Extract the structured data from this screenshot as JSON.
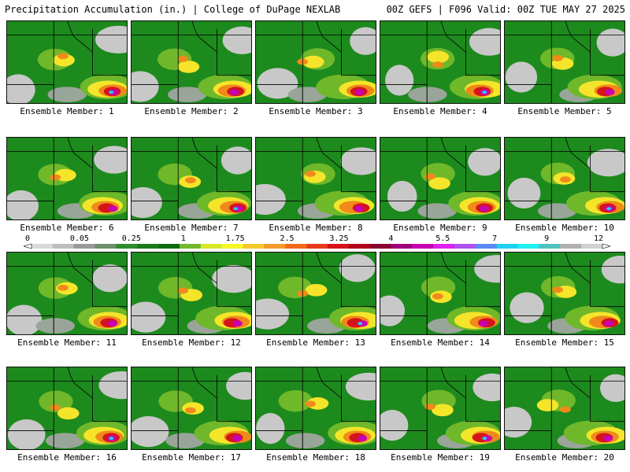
{
  "header": {
    "title_left": "Precipitation Accumulation (in.) | College of DuPage NEXLAB",
    "title_right": "00Z GEFS | F096 Valid: 00Z TUE MAY 27 2025"
  },
  "colorbar": {
    "labels": [
      "0",
      "0.05",
      "0.25",
      "1",
      "1.75",
      "2.5",
      "3.25",
      "4",
      "5.5",
      "7",
      "9",
      "12"
    ],
    "colors": [
      "#d9d9d9",
      "#bdbdbd",
      "#9a9a9a",
      "#6b8f6b",
      "#2e8b2e",
      "#1a7a1a",
      "#0f6a0f",
      "#72b82a",
      "#d7e82a",
      "#f7f72a",
      "#f5c82a",
      "#f59a2a",
      "#f26a1a",
      "#e83a1a",
      "#d4141a",
      "#b0001a",
      "#8a0030",
      "#a0007a",
      "#c800b4",
      "#e020f0",
      "#b050f0",
      "#5a8af0",
      "#20d0f0",
      "#20f0f0",
      "#50c0c0",
      "#b0b0b0",
      "#d0d0d0"
    ]
  },
  "colors": {
    "background": "#ffffff",
    "base_green": "#1d8a1d",
    "light_gray": "#c8c8c8",
    "yellow": "#f5e52a",
    "orange": "#f08a1a",
    "red": "#d4141a",
    "magenta": "#c800b4",
    "cyan": "#20d0f0"
  },
  "members": [
    {
      "label": "Ensemble Member: 1"
    },
    {
      "label": "Ensemble Member: 2"
    },
    {
      "label": "Ensemble Member: 3"
    },
    {
      "label": "Ensemble Member: 4"
    },
    {
      "label": "Ensemble Member: 5"
    },
    {
      "label": "Ensemble Member: 6"
    },
    {
      "label": "Ensemble Member: 7"
    },
    {
      "label": "Ensemble Member: 8"
    },
    {
      "label": "Ensemble Member: 9"
    },
    {
      "label": "Ensemble Member: 10"
    },
    {
      "label": "Ensemble Member: 11"
    },
    {
      "label": "Ensemble Member: 12"
    },
    {
      "label": "Ensemble Member: 13"
    },
    {
      "label": "Ensemble Member: 14"
    },
    {
      "label": "Ensemble Member: 15"
    },
    {
      "label": "Ensemble Member: 16"
    },
    {
      "label": "Ensemble Member: 17"
    },
    {
      "label": "Ensemble Member: 18"
    },
    {
      "label": "Ensemble Member: 19"
    },
    {
      "label": "Ensemble Member: 20"
    }
  ]
}
